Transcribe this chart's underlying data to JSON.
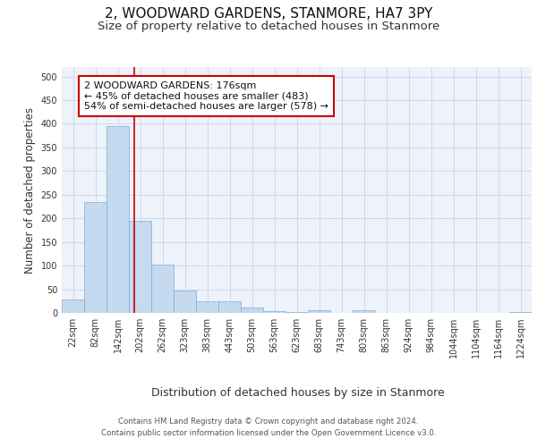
{
  "title1": "2, WOODWARD GARDENS, STANMORE, HA7 3PY",
  "title2": "Size of property relative to detached houses in Stanmore",
  "xlabel": "Distribution of detached houses by size in Stanmore",
  "ylabel": "Number of detached properties",
  "footer1": "Contains HM Land Registry data © Crown copyright and database right 2024.",
  "footer2": "Contains public sector information licensed under the Open Government Licence v3.0.",
  "bin_labels": [
    "22sqm",
    "82sqm",
    "142sqm",
    "202sqm",
    "262sqm",
    "323sqm",
    "383sqm",
    "443sqm",
    "503sqm",
    "563sqm",
    "623sqm",
    "683sqm",
    "743sqm",
    "803sqm",
    "863sqm",
    "924sqm",
    "984sqm",
    "1044sqm",
    "1104sqm",
    "1164sqm",
    "1224sqm"
  ],
  "bar_values": [
    28,
    235,
    395,
    195,
    103,
    47,
    25,
    25,
    12,
    4,
    2,
    5,
    0,
    5,
    0,
    0,
    0,
    0,
    0,
    0,
    2
  ],
  "bar_color": "#c5d9f0",
  "bar_edge_color": "#7bafd4",
  "grid_color": "#d0d8e8",
  "background_color": "#eef2fa",
  "annotation_text": "2 WOODWARD GARDENS: 176sqm\n← 45% of detached houses are smaller (483)\n54% of semi-detached houses are larger (578) →",
  "annotation_box_color": "#ffffff",
  "annotation_border_color": "#cc0000",
  "vline_x": 2.75,
  "vline_color": "#cc0000",
  "ylim": [
    0,
    520
  ],
  "yticks": [
    0,
    50,
    100,
    150,
    200,
    250,
    300,
    350,
    400,
    450,
    500
  ],
  "title1_fontsize": 11,
  "title2_fontsize": 9.5,
  "xlabel_fontsize": 9,
  "ylabel_fontsize": 8.5,
  "tick_fontsize": 7,
  "annotation_fontsize": 8,
  "footer_fontsize": 6.2
}
